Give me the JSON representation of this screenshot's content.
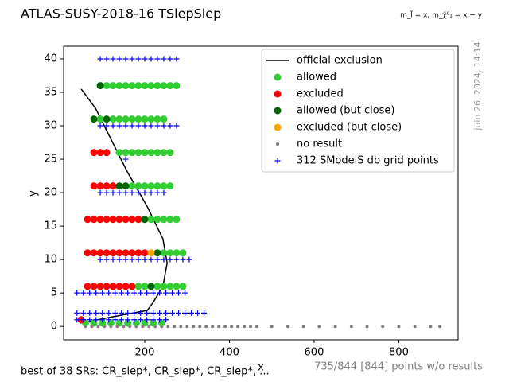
{
  "chart_data": {
    "type": "scatter",
    "title": "ATLAS-SUSY-2018-16 TSlepSlep",
    "mass_note": "m_l̃ = x, m_χ̃⁰₁ = x − y",
    "timestamp": "juin 26, 2024, 14:14",
    "footer_left": "best of 38 SRs: CR_slep*, CR_slep*, CR_slep*, ...",
    "footer_right": "735/844 [844] points w/o results",
    "x_label": "x",
    "y_label": "y",
    "xlim": [
      8.5,
      940
    ],
    "ylim": [
      -2,
      41.9
    ],
    "xticks": [
      200,
      400,
      600,
      800
    ],
    "yticks": [
      0,
      5,
      10,
      15,
      20,
      25,
      30,
      35,
      40
    ],
    "legend": "upper right",
    "series": [
      {
        "name": "official exclusion",
        "color": "#000000",
        "marker": "line",
        "x": [
          50,
          84,
          121,
          159,
          206,
          243,
          253,
          243,
          220,
          206,
          121,
          65,
          46
        ],
        "values": [
          35.5,
          32.6,
          27.9,
          23.1,
          17.9,
          13.1,
          9.5,
          6,
          3.6,
          2.4,
          1.4,
          0.7,
          0.5
        ]
      },
      {
        "name": "allowed",
        "color": "#32cd32",
        "marker": "circle",
        "x": [
          110,
          125,
          140,
          155,
          170,
          185,
          200,
          215,
          230,
          245,
          260,
          275,
          95,
          125,
          140,
          155,
          170,
          185,
          200,
          215,
          230,
          245,
          140,
          155,
          170,
          185,
          200,
          215,
          230,
          245,
          260,
          170,
          185,
          200,
          215,
          230,
          245,
          260,
          215,
          230,
          245,
          260,
          275,
          245,
          260,
          275,
          290,
          185,
          200,
          230,
          245,
          260,
          275,
          290,
          60,
          80,
          100,
          120,
          140,
          160,
          180,
          200,
          220,
          240
        ],
        "values": [
          36,
          36,
          36,
          36,
          36,
          36,
          36,
          36,
          36,
          36,
          36,
          36,
          31,
          31,
          31,
          31,
          31,
          31,
          31,
          31,
          31,
          31,
          26,
          26,
          26,
          26,
          26,
          26,
          26,
          26,
          26,
          21,
          21,
          21,
          21,
          21,
          21,
          21,
          16,
          16,
          16,
          16,
          16,
          11,
          11,
          11,
          11,
          6,
          6,
          6,
          6,
          6,
          6,
          6,
          0.5,
          0.5,
          0.5,
          0.5,
          0.5,
          0.5,
          0.5,
          0.5,
          0.5,
          0.5
        ]
      },
      {
        "name": "excluded",
        "color": "#ff0000",
        "marker": "circle",
        "x": [
          80,
          95,
          110,
          80,
          95,
          110,
          125,
          65,
          80,
          95,
          110,
          125,
          140,
          155,
          170,
          185,
          65,
          80,
          95,
          110,
          125,
          140,
          155,
          170,
          185,
          200,
          65,
          80,
          95,
          110,
          125,
          140,
          155,
          170,
          50
        ],
        "values": [
          26,
          26,
          26,
          21,
          21,
          21,
          21,
          16,
          16,
          16,
          16,
          16,
          16,
          16,
          16,
          16,
          11,
          11,
          11,
          11,
          11,
          11,
          11,
          11,
          11,
          11,
          6,
          6,
          6,
          6,
          6,
          6,
          6,
          6,
          1
        ]
      },
      {
        "name": "allowed (but close)",
        "color": "#006400",
        "marker": "circle",
        "x": [
          95,
          80,
          110,
          140,
          155,
          200,
          230,
          215
        ],
        "values": [
          36,
          31,
          31,
          21,
          21,
          16,
          11,
          6
        ]
      },
      {
        "name": "excluded (but close)",
        "color": "#ffa500",
        "marker": "circle",
        "x": [
          215
        ],
        "values": [
          11
        ]
      },
      {
        "name": "no result",
        "color": "#808080",
        "marker": "dot",
        "x": [
          60,
          75,
          90,
          105,
          120,
          135,
          150,
          165,
          180,
          195,
          210,
          225,
          240,
          255,
          270,
          285,
          300,
          315,
          330,
          345,
          360,
          375,
          390,
          405,
          420,
          435,
          450,
          465,
          500,
          538,
          575,
          612,
          650,
          688,
          725,
          762,
          800,
          838,
          875,
          897
        ],
        "values": [
          0,
          0,
          0,
          0,
          0,
          0,
          0,
          0,
          0,
          0,
          0,
          0,
          0,
          0,
          0,
          0,
          0,
          0,
          0,
          0,
          0,
          0,
          0,
          0,
          0,
          0,
          0,
          0,
          0,
          0,
          0,
          0,
          0,
          0,
          0,
          0,
          0,
          0,
          0,
          0
        ]
      },
      {
        "name": "312 SModelS db grid points",
        "color": "#0000ff",
        "marker": "plus",
        "x": [
          95,
          110,
          125,
          140,
          155,
          170,
          185,
          200,
          215,
          230,
          245,
          260,
          275,
          95,
          110,
          125,
          140,
          155,
          170,
          185,
          200,
          215,
          230,
          245,
          260,
          275,
          155,
          95,
          110,
          125,
          140,
          155,
          170,
          185,
          200,
          215,
          230,
          245,
          95,
          110,
          125,
          140,
          155,
          170,
          185,
          200,
          215,
          230,
          245,
          260,
          275,
          290,
          305,
          40,
          55,
          70,
          85,
          100,
          115,
          130,
          145,
          160,
          175,
          190,
          205,
          220,
          235,
          250,
          265,
          280,
          295,
          40,
          55,
          70,
          85,
          100,
          115,
          130,
          145,
          160,
          175,
          190,
          205,
          220,
          235,
          250,
          265,
          280,
          295,
          310,
          325,
          340,
          40,
          55,
          70,
          85,
          100,
          115,
          130,
          145,
          160,
          175,
          190,
          205,
          220,
          235,
          250
        ],
        "values": [
          40,
          40,
          40,
          40,
          40,
          40,
          40,
          40,
          40,
          40,
          40,
          40,
          40,
          30,
          30,
          30,
          30,
          30,
          30,
          30,
          30,
          30,
          30,
          30,
          30,
          30,
          25,
          20,
          20,
          20,
          20,
          20,
          20,
          20,
          20,
          20,
          20,
          20,
          10,
          10,
          10,
          10,
          10,
          10,
          10,
          10,
          10,
          10,
          10,
          10,
          10,
          10,
          10,
          5,
          5,
          5,
          5,
          5,
          5,
          5,
          5,
          5,
          5,
          5,
          5,
          5,
          5,
          5,
          5,
          5,
          5,
          2,
          2,
          2,
          2,
          2,
          2,
          2,
          2,
          2,
          2,
          2,
          2,
          2,
          2,
          2,
          2,
          2,
          2,
          2,
          2,
          2,
          1,
          1,
          1,
          1,
          1,
          1,
          1,
          1,
          1,
          1,
          1,
          1,
          1,
          1,
          1
        ]
      }
    ]
  }
}
